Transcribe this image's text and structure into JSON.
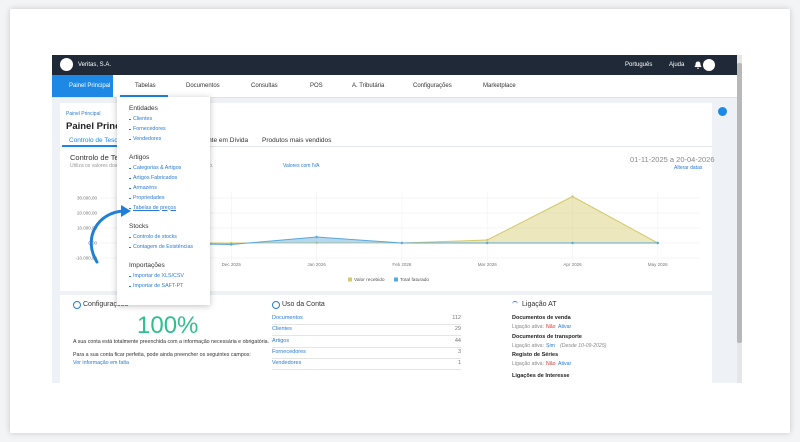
{
  "top_bar": {
    "company": "Veritas, S.A.",
    "language": "Português",
    "help": "Ajuda"
  },
  "nav": [
    "Painel Principal",
    "Tabelas",
    "Documentos",
    "Consultas",
    "POS",
    "A. Tributária",
    "Configurações",
    "Marketplace"
  ],
  "breadcrumb": "Painel Principal",
  "title": "Painel Principal",
  "tabs": [
    "Controlo de Tesouraria",
    "Montante em Dívida",
    "Produtos mais vendidos"
  ],
  "chart_header": {
    "title": "Controlo de Tesouraria",
    "subtitle": "Utiliza os valores dos documentos pagos e o valor total faturado.",
    "subtitle_link": "Valores com IVA",
    "date_range": "01-11-2025 a 20-04-2026",
    "change_dates": "Alterar datas"
  },
  "chart_data": {
    "type": "area",
    "categories": [
      null,
      "Dec 2025",
      "Jan 2026",
      "Feb 2026",
      "Mar 2026",
      "Apr 2026",
      "May 2026"
    ],
    "series": [
      {
        "name": "Valor recebido",
        "color": "#d4c96a",
        "values": [
          0,
          0,
          0,
          0,
          2000,
          31000,
          0
        ]
      },
      {
        "name": "Total faturado",
        "color": "#5aa8dc",
        "values": [
          0,
          -1000,
          4000,
          0,
          0,
          0,
          0
        ]
      }
    ],
    "ylim": [
      -12000,
      34000
    ],
    "yticks": [
      {
        "value": -10000,
        "label": "-10.000,00"
      },
      {
        "value": 0,
        "label": "0,00"
      },
      {
        "value": 10000,
        "label": "10.000,00"
      },
      {
        "value": 20000,
        "label": "20.000,00"
      },
      {
        "value": 30000,
        "label": "30.000,00"
      }
    ],
    "grid": true
  },
  "dropdown": [
    {
      "header": "Entidades",
      "items": [
        "Clientes",
        "Fornecedores",
        "Vendedores"
      ]
    },
    {
      "header": "Artigos",
      "items": [
        "Categorias & Artigos",
        "Artigos Fabricados",
        "Armazéns",
        "Propriedades",
        "Tabelas de preços"
      ]
    },
    {
      "header": "Stocks",
      "items": [
        "Controlo de stocks",
        "Contagem de Existências"
      ]
    },
    {
      "header": "Importações",
      "items": [
        "Importar de XLS/CSV",
        "Importar de SAFT-PT"
      ]
    }
  ],
  "config": {
    "heading": "Configurações",
    "percent": "100%",
    "text1": "A sua conta está totalmente preenchida com a informação necessária e obrigatória.",
    "text2": "Para a sua conta ficar perfeita, pode ainda preencher os seguintes campos:",
    "link": "Ver informação em falta"
  },
  "usage": {
    "heading": "Uso da Conta",
    "rows": [
      [
        "Documentos",
        "112"
      ],
      [
        "Clientes",
        "29"
      ],
      [
        "Artigos",
        "44"
      ],
      [
        "Fornecedores",
        "3"
      ],
      [
        "Vendedores",
        "1"
      ]
    ]
  },
  "at": {
    "heading": "Ligação AT",
    "items": [
      {
        "title": "Documentos de venda",
        "label": "Ligação ativa:",
        "status": "Não",
        "action": "Ativar"
      },
      {
        "title": "Documentos de transporte",
        "label": "Ligação ativa:",
        "status": "Sim",
        "note": "(Desde 10-09-2025)"
      },
      {
        "title": "Registo de Séries",
        "label": "Ligação ativa:",
        "status": "Não",
        "action": "Ativar"
      }
    ],
    "footer": "Ligações de Interesse"
  }
}
